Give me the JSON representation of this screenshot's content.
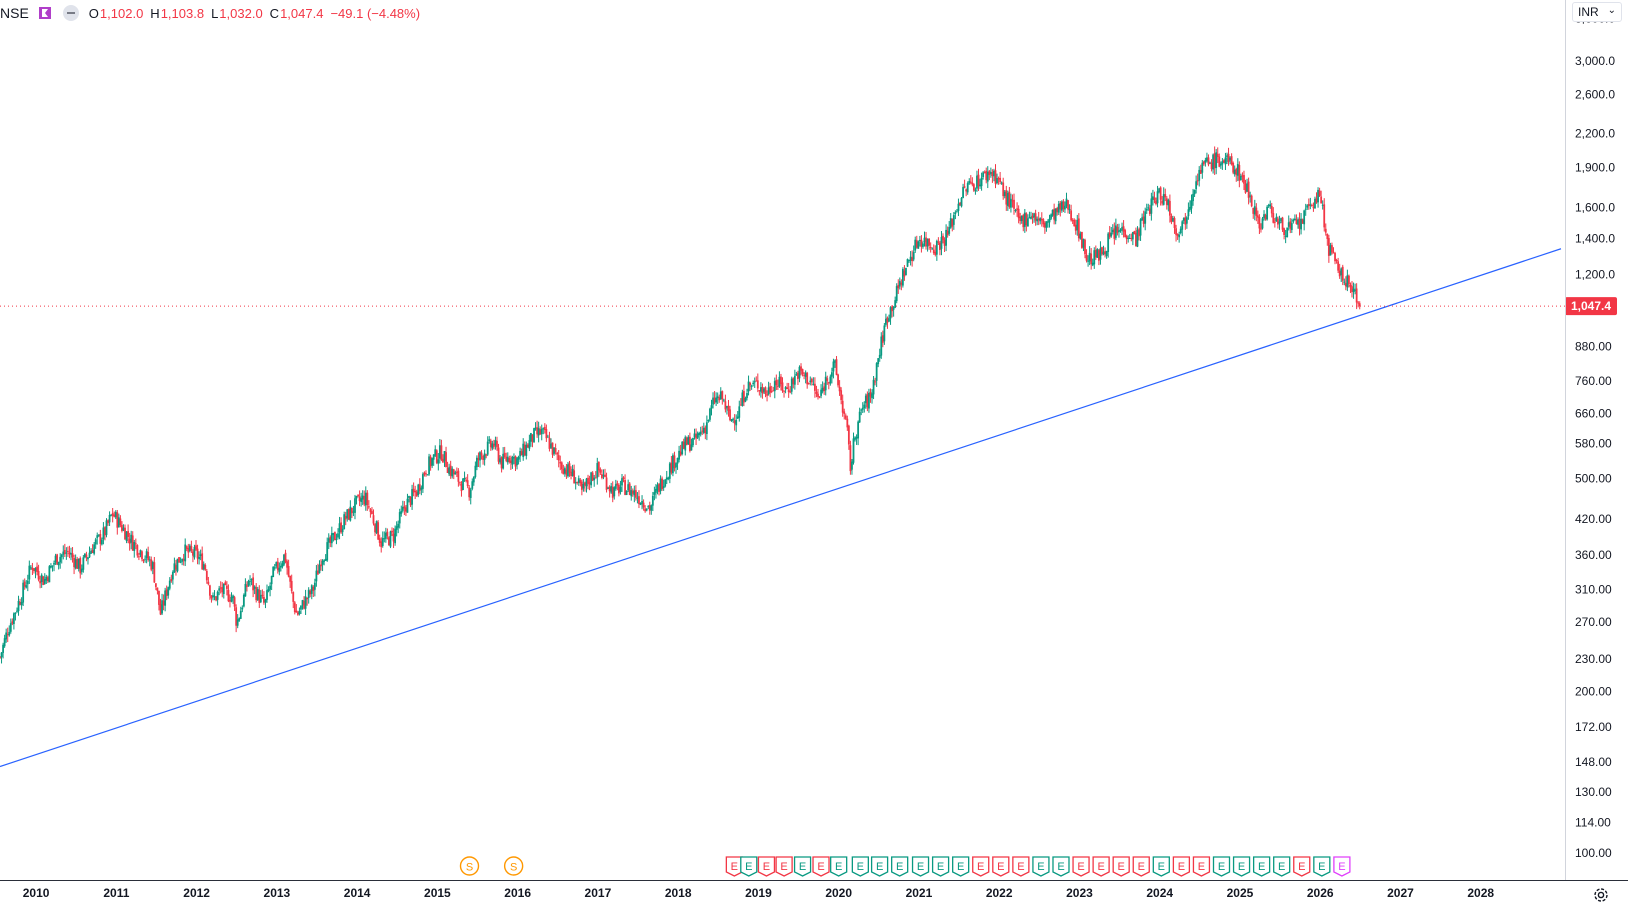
{
  "header": {
    "symbol": "NSE",
    "open_label": "O",
    "open": "1,102.0",
    "high_label": "H",
    "high": "1,103.8",
    "low_label": "L",
    "low": "1,032.0",
    "close_label": "C",
    "close": "1,047.4",
    "change": "−49.1 (−4.48%)"
  },
  "currency": "INR",
  "colors": {
    "up": "#089981",
    "down": "#f23645",
    "trendline": "#2962ff",
    "dividend": "#ff9800",
    "earnings_future": "#e040fb",
    "grid_text": "#131722"
  },
  "price_axis_labels": [
    "3,600.0",
    "3,000.0",
    "2,600.0",
    "2,200.0",
    "1,900.0",
    "1,600.0",
    "1,400.0",
    "1,200.0",
    "880.00",
    "760.00",
    "660.00",
    "580.00",
    "500.00",
    "420.00",
    "360.00",
    "310.00",
    "270.00",
    "230.00",
    "200.00",
    "172.00",
    "148.00",
    "130.00",
    "114.00",
    "100.00"
  ],
  "last_price_label": "1,047.4",
  "time_axis_labels": [
    "2010",
    "2011",
    "2012",
    "2013",
    "2014",
    "2015",
    "2016",
    "2017",
    "2018",
    "2019",
    "2020",
    "2021",
    "2022",
    "2023",
    "2024",
    "2025",
    "2026",
    "2027",
    "2028"
  ],
  "dividend_marker": "S",
  "earnings_marker": "E",
  "chart_data": {
    "type": "candlestick",
    "scale": "log",
    "price_range": [
      95,
      3900
    ],
    "x_range": [
      2009.55,
      2029.05
    ],
    "last_close": 1047.4,
    "weekly_path": [
      [
        2009.55,
        232
      ],
      [
        2009.65,
        262
      ],
      [
        2009.8,
        298
      ],
      [
        2009.95,
        345
      ],
      [
        2010.1,
        322
      ],
      [
        2010.25,
        355
      ],
      [
        2010.4,
        365
      ],
      [
        2010.55,
        340
      ],
      [
        2010.7,
        372
      ],
      [
        2010.85,
        395
      ],
      [
        2010.95,
        430
      ],
      [
        2011.05,
        410
      ],
      [
        2011.2,
        380
      ],
      [
        2011.35,
        360
      ],
      [
        2011.45,
        345
      ],
      [
        2011.55,
        280
      ],
      [
        2011.6,
        298
      ],
      [
        2011.7,
        340
      ],
      [
        2011.85,
        365
      ],
      [
        2012.0,
        360
      ],
      [
        2012.1,
        345
      ],
      [
        2012.2,
        295
      ],
      [
        2012.3,
        310
      ],
      [
        2012.45,
        300
      ],
      [
        2012.5,
        268
      ],
      [
        2012.55,
        285
      ],
      [
        2012.65,
        325
      ],
      [
        2012.75,
        305
      ],
      [
        2012.85,
        290
      ],
      [
        2012.95,
        330
      ],
      [
        2013.1,
        360
      ],
      [
        2013.2,
        295
      ],
      [
        2013.25,
        278
      ],
      [
        2013.35,
        295
      ],
      [
        2013.45,
        310
      ],
      [
        2013.55,
        355
      ],
      [
        2013.7,
        385
      ],
      [
        2013.85,
        420
      ],
      [
        2014.0,
        450
      ],
      [
        2014.1,
        460
      ],
      [
        2014.2,
        420
      ],
      [
        2014.3,
        380
      ],
      [
        2014.45,
        390
      ],
      [
        2014.6,
        445
      ],
      [
        2014.75,
        475
      ],
      [
        2014.85,
        520
      ],
      [
        2014.95,
        545
      ],
      [
        2015.05,
        560
      ],
      [
        2015.15,
        520
      ],
      [
        2015.3,
        490
      ],
      [
        2015.4,
        475
      ],
      [
        2015.5,
        540
      ],
      [
        2015.6,
        565
      ],
      [
        2015.7,
        580
      ],
      [
        2015.8,
        535
      ],
      [
        2015.9,
        550
      ],
      [
        2016.0,
        540
      ],
      [
        2016.1,
        570
      ],
      [
        2016.2,
        600
      ],
      [
        2016.3,
        610
      ],
      [
        2016.4,
        580
      ],
      [
        2016.5,
        540
      ],
      [
        2016.6,
        520
      ],
      [
        2016.7,
        505
      ],
      [
        2016.8,
        470
      ],
      [
        2016.9,
        500
      ],
      [
        2017.0,
        520
      ],
      [
        2017.1,
        495
      ],
      [
        2017.2,
        470
      ],
      [
        2017.3,
        485
      ],
      [
        2017.45,
        470
      ],
      [
        2017.55,
        455
      ],
      [
        2017.65,
        440
      ],
      [
        2017.75,
        480
      ],
      [
        2017.85,
        510
      ],
      [
        2017.95,
        540
      ],
      [
        2018.1,
        580
      ],
      [
        2018.2,
        585
      ],
      [
        2018.35,
        630
      ],
      [
        2018.45,
        700
      ],
      [
        2018.55,
        705
      ],
      [
        2018.65,
        640
      ],
      [
        2018.75,
        665
      ],
      [
        2018.85,
        740
      ],
      [
        2019.0,
        750
      ],
      [
        2019.1,
        720
      ],
      [
        2019.2,
        760
      ],
      [
        2019.35,
        730
      ],
      [
        2019.5,
        790
      ],
      [
        2019.65,
        760
      ],
      [
        2019.75,
        700
      ],
      [
        2019.85,
        770
      ],
      [
        2019.95,
        810
      ],
      [
        2020.1,
        620
      ],
      [
        2020.15,
        520
      ],
      [
        2020.2,
        600
      ],
      [
        2020.3,
        680
      ],
      [
        2020.4,
        710
      ],
      [
        2020.5,
        850
      ],
      [
        2020.6,
        1000
      ],
      [
        2020.7,
        1080
      ],
      [
        2020.8,
        1200
      ],
      [
        2020.9,
        1300
      ],
      [
        2021.0,
        1400
      ],
      [
        2021.1,
        1380
      ],
      [
        2021.2,
        1350
      ],
      [
        2021.35,
        1420
      ],
      [
        2021.5,
        1650
      ],
      [
        2021.6,
        1750
      ],
      [
        2021.75,
        1800
      ],
      [
        2021.9,
        1870
      ],
      [
        2022.0,
        1800
      ],
      [
        2022.05,
        1700
      ],
      [
        2022.15,
        1620
      ],
      [
        2022.25,
        1500
      ],
      [
        2022.4,
        1560
      ],
      [
        2022.55,
        1480
      ],
      [
        2022.7,
        1560
      ],
      [
        2022.85,
        1620
      ],
      [
        2023.0,
        1440
      ],
      [
        2023.1,
        1280
      ],
      [
        2023.25,
        1300
      ],
      [
        2023.4,
        1420
      ],
      [
        2023.55,
        1460
      ],
      [
        2023.7,
        1400
      ],
      [
        2023.85,
        1590
      ],
      [
        2024.0,
        1700
      ],
      [
        2024.1,
        1640
      ],
      [
        2024.2,
        1450
      ],
      [
        2024.3,
        1500
      ],
      [
        2024.45,
        1820
      ],
      [
        2024.55,
        1920
      ],
      [
        2024.7,
        1960
      ],
      [
        2024.85,
        1950
      ],
      [
        2025.0,
        1850
      ],
      [
        2025.1,
        1720
      ],
      [
        2025.25,
        1480
      ],
      [
        2025.35,
        1600
      ],
      [
        2025.5,
        1480
      ],
      [
        2025.6,
        1460
      ],
      [
        2025.75,
        1490
      ],
      [
        2025.9,
        1640
      ],
      [
        2026.0,
        1680
      ],
      [
        2026.1,
        1350
      ],
      [
        2026.2,
        1240
      ],
      [
        2026.3,
        1180
      ],
      [
        2026.4,
        1120
      ],
      [
        2026.45,
        1102
      ],
      [
        2026.5,
        1047.4
      ]
    ],
    "trendline": [
      [
        2009.55,
        145
      ],
      [
        2029.0,
        1340
      ]
    ],
    "dividends": [
      2015.4,
      2015.95
    ],
    "earnings": [
      {
        "x": 2018.7,
        "c": "down"
      },
      {
        "x": 2018.88,
        "c": "up"
      },
      {
        "x": 2019.1,
        "c": "down"
      },
      {
        "x": 2019.32,
        "c": "down"
      },
      {
        "x": 2019.55,
        "c": "up"
      },
      {
        "x": 2019.78,
        "c": "down"
      },
      {
        "x": 2020.0,
        "c": "up"
      },
      {
        "x": 2020.27,
        "c": "up"
      },
      {
        "x": 2020.51,
        "c": "up"
      },
      {
        "x": 2020.76,
        "c": "up"
      },
      {
        "x": 2021.02,
        "c": "up"
      },
      {
        "x": 2021.27,
        "c": "up"
      },
      {
        "x": 2021.52,
        "c": "up"
      },
      {
        "x": 2021.77,
        "c": "down"
      },
      {
        "x": 2022.02,
        "c": "down"
      },
      {
        "x": 2022.27,
        "c": "down"
      },
      {
        "x": 2022.52,
        "c": "up"
      },
      {
        "x": 2022.77,
        "c": "up"
      },
      {
        "x": 2023.02,
        "c": "down"
      },
      {
        "x": 2023.27,
        "c": "down"
      },
      {
        "x": 2023.52,
        "c": "down"
      },
      {
        "x": 2023.77,
        "c": "down"
      },
      {
        "x": 2024.02,
        "c": "up"
      },
      {
        "x": 2024.27,
        "c": "down"
      },
      {
        "x": 2024.52,
        "c": "down"
      },
      {
        "x": 2024.77,
        "c": "up"
      },
      {
        "x": 2025.02,
        "c": "up"
      },
      {
        "x": 2025.27,
        "c": "up"
      },
      {
        "x": 2025.52,
        "c": "up"
      },
      {
        "x": 2025.77,
        "c": "down"
      },
      {
        "x": 2026.02,
        "c": "up"
      },
      {
        "x": 2026.27,
        "c": "future"
      }
    ]
  }
}
